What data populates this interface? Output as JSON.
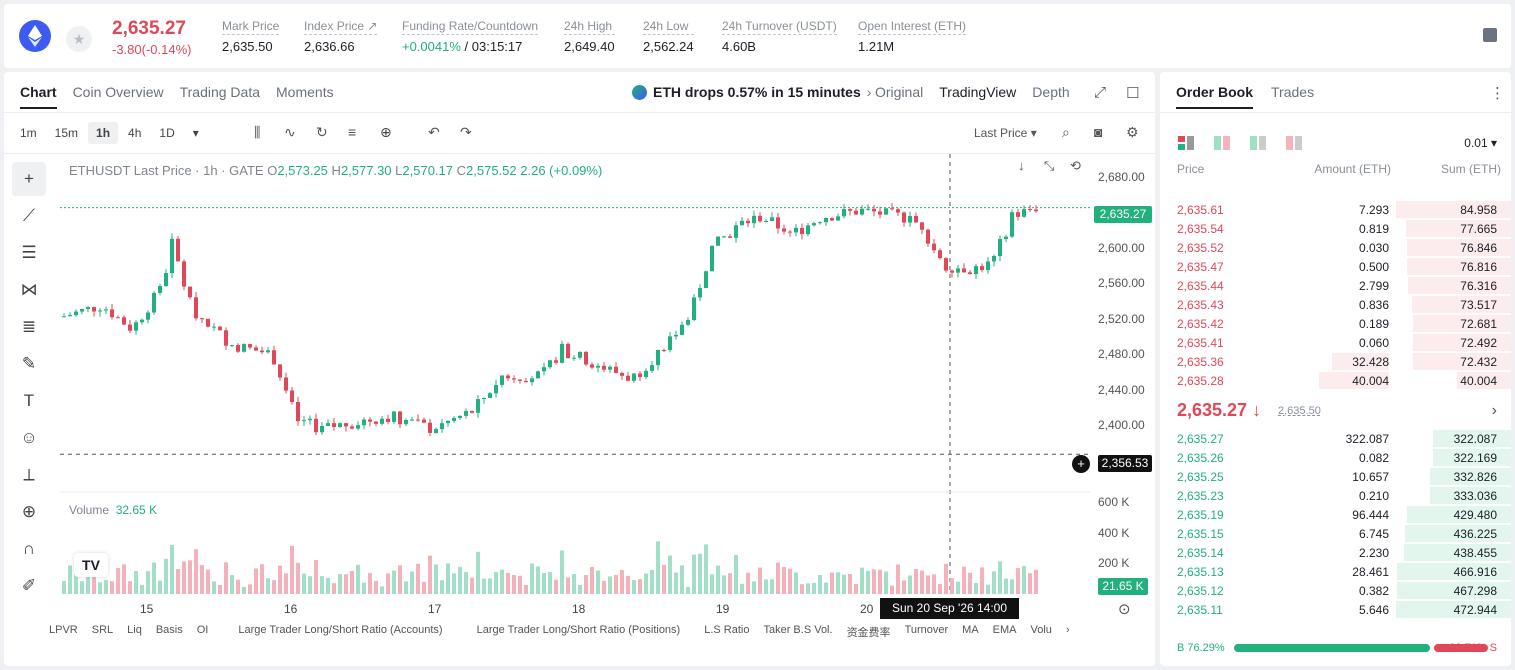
{
  "ticker": {
    "last": "2,635.27",
    "change": "-3.80(-0.14%)"
  },
  "stats": [
    {
      "label": "Mark Price",
      "value": "2,635.50"
    },
    {
      "label": "Index Price ↗",
      "value": "2,636.66"
    },
    {
      "label": "Funding Rate/Countdown",
      "value_a": "+0.0041%",
      "value_b": "/ 03:15:17"
    },
    {
      "label": "24h High",
      "value": "2,649.40"
    },
    {
      "label": "24h Low",
      "value": "2,562.24"
    },
    {
      "label": "24h Turnover (USDT)",
      "value": "4.60B"
    },
    {
      "label": "Open Interest (ETH)",
      "value": "1.21M"
    }
  ],
  "chart_tabs": [
    "Chart",
    "Coin Overview",
    "Trading Data",
    "Moments"
  ],
  "alert": "ETH drops 0.57% in 15 minutes",
  "views": [
    "Original",
    "TradingView",
    "Depth"
  ],
  "timeframes": [
    "1m",
    "15m",
    "1h",
    "4h",
    "1D"
  ],
  "price_source": "Last Price ▾",
  "legend": {
    "name": "ETHUSDT Last Price · 1h · GATE",
    "o": "O",
    "ov": "2,573.25",
    "h": "H",
    "hv": "2,577.30",
    "l": "L",
    "lv": "2,570.17",
    "c": "C",
    "cv": "2,575.52",
    "chg": "2.26 (+0.09%)"
  },
  "volume_label": "Volume",
  "volume_value": "32.65 K",
  "y_ticks": [
    "2,680.00",
    "2,600.00",
    "2,560.00",
    "2,520.00",
    "2,480.00",
    "2,440.00",
    "2,400.00"
  ],
  "vol_ticks": [
    "600 K",
    "400 K",
    "200 K"
  ],
  "tags": {
    "last": "2,635.27",
    "cross": "2,356.53",
    "vol": "21.65 K"
  },
  "x_ticks": [
    "15",
    "16",
    "17",
    "18",
    "19",
    "20"
  ],
  "x_tip": "Sun 20 Sep '26   14:00",
  "indicators": [
    "LPVR",
    "SRL",
    "Liq",
    "Basis",
    "OI",
    "Large Trader Long/Short Ratio (Accounts)",
    "Large Trader Long/Short Ratio (Positions)",
    "L.S Ratio",
    "Taker B.S Vol.",
    "资金费率",
    "Turnover",
    "MA",
    "EMA",
    "Volu"
  ],
  "orderbook": {
    "tabs": [
      "Order Book",
      "Trades"
    ],
    "tick": "0.01 ▾",
    "headers": [
      "Price",
      "Amount (ETH)",
      "Sum (ETH)"
    ],
    "asks": [
      [
        "2,635.61",
        "7.293",
        "84.958"
      ],
      [
        "2,635.54",
        "0.819",
        "77.665"
      ],
      [
        "2,635.52",
        "0.030",
        "76.846"
      ],
      [
        "2,635.47",
        "0.500",
        "76.816"
      ],
      [
        "2,635.44",
        "2.799",
        "76.316"
      ],
      [
        "2,635.43",
        "0.836",
        "73.517"
      ],
      [
        "2,635.42",
        "0.189",
        "72.681"
      ],
      [
        "2,635.41",
        "0.060",
        "72.492"
      ],
      [
        "2,635.36",
        "32.428",
        "72.432"
      ],
      [
        "2,635.28",
        "40.004",
        "40.004"
      ]
    ],
    "mid": "2,635.27 ↓",
    "mid_index": "2,635.50",
    "bids": [
      [
        "2,635.27",
        "322.087",
        "322.087"
      ],
      [
        "2,635.26",
        "0.082",
        "322.169"
      ],
      [
        "2,635.25",
        "10.657",
        "332.826"
      ],
      [
        "2,635.23",
        "0.210",
        "333.036"
      ],
      [
        "2,635.19",
        "96.444",
        "429.480"
      ],
      [
        "2,635.15",
        "6.745",
        "436.225"
      ],
      [
        "2,635.14",
        "2.230",
        "438.455"
      ],
      [
        "2,635.13",
        "28.461",
        "466.916"
      ],
      [
        "2,635.12",
        "0.382",
        "467.298"
      ],
      [
        "2,635.11",
        "5.646",
        "472.944"
      ]
    ],
    "buy": "B 76.29%",
    "sell": "23.71% S",
    "buy_ratio": 0.7629
  },
  "colors": {
    "up": "#22b07d",
    "down": "#e04859"
  }
}
